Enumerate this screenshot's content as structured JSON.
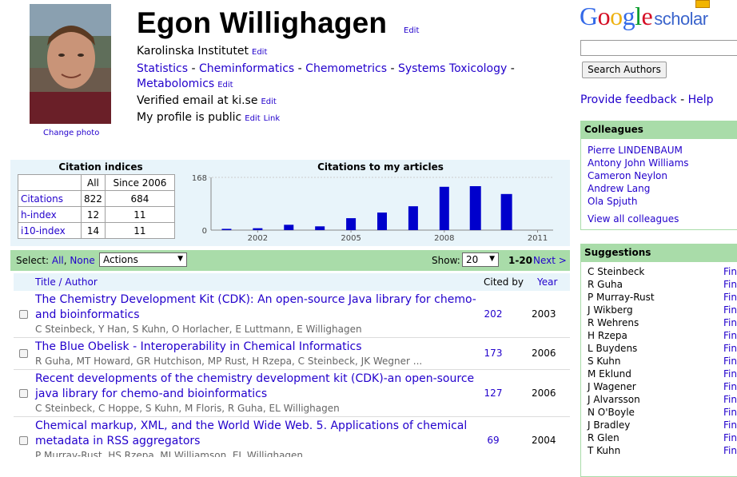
{
  "profile": {
    "name": "Egon Willighagen",
    "edit": "Edit",
    "affiliation": "Karolinska Institutet",
    "interests": [
      "Statistics",
      "Cheminformatics",
      "Chemometrics",
      "Systems Toxicology",
      "Metabolomics"
    ],
    "email": "Verified email at ki.se",
    "public": "My profile is public",
    "link": "Link",
    "change_photo": "Change photo"
  },
  "citation_indices": {
    "title": "Citation indices",
    "headers": [
      "",
      "All",
      "Since 2006"
    ],
    "rows": [
      {
        "label": "Citations",
        "all": "822",
        "since": "684"
      },
      {
        "label": "h-index",
        "all": "12",
        "since": "11"
      },
      {
        "label": "i10-index",
        "all": "14",
        "since": "11"
      }
    ]
  },
  "chart_data": {
    "type": "bar",
    "title": "Citations to my articles",
    "categories": [
      "2001",
      "2002",
      "2003",
      "2004",
      "2005",
      "2006",
      "2007",
      "2008",
      "2009",
      "2010",
      "2011"
    ],
    "values": [
      4,
      6,
      17,
      12,
      38,
      56,
      76,
      138,
      140,
      115,
      0
    ],
    "ylim": [
      0,
      168
    ],
    "ytick_labels": [
      "168",
      "0"
    ],
    "xtick_labels": [
      "2002",
      "2005",
      "2008",
      "2011"
    ],
    "color": "#0000cc"
  },
  "toolbar": {
    "select_label": "Select:",
    "all": "All",
    "none": "None",
    "actions": "Actions",
    "show_label": "Show:",
    "show_value": "20",
    "range": "1-20",
    "next": "Next >"
  },
  "list": {
    "headers": {
      "title": "Title / Author",
      "cited": "Cited by",
      "year": "Year"
    },
    "articles": [
      {
        "title": "The Chemistry Development Kit (CDK): An open-source Java library for chemo-and bioinformatics",
        "authors": "C Steinbeck, Y Han, S Kuhn, O Horlacher, E Luttmann, E Willighagen",
        "cited": "202",
        "year": "2003"
      },
      {
        "title": "The Blue Obelisk - Interoperability in Chemical Informatics",
        "authors": "R Guha, MT Howard, GR Hutchison, MP Rust, H Rzepa, C Steinbeck, JK Wegner ...",
        "cited": "173",
        "year": "2006"
      },
      {
        "title": "Recent developments of the chemistry development kit (CDK)-an open-source java library for chemo-and bioinformatics",
        "authors": "C Steinbeck, C Hoppe, S Kuhn, M Floris, R Guha, EL Willighagen",
        "cited": "127",
        "year": "2006"
      },
      {
        "title": "Chemical markup, XML, and the World Wide Web. 5. Applications of chemical metadata in RSS aggregators",
        "authors": "P Murray-Rust, HS Rzepa, MJ Williamson, EL Willighagen",
        "cited": "69",
        "year": "2004"
      }
    ]
  },
  "sidebar": {
    "logo": "Google",
    "logo_sub": "scholar",
    "search_button": "Search Authors",
    "feedback": "Provide feedback",
    "help": "Help",
    "colleagues_title": "Colleagues",
    "colleagues": [
      "Pierre LINDENBAUM",
      "Antony John Williams",
      "Cameron Neylon",
      "Andrew Lang",
      "Ola Spjuth"
    ],
    "view_all": "View all colleagues",
    "suggestions_title": "Suggestions",
    "suggestions": [
      "C Steinbeck",
      "R Guha",
      "P Murray-Rust",
      "J Wikberg",
      "R Wehrens",
      "H Rzepa",
      "L Buydens",
      "S Kuhn",
      "M Eklund",
      "J Wagener",
      "J Alvarsson",
      "N O'Boyle",
      "J Bradley",
      "R Glen",
      "T Kuhn"
    ],
    "find_label": "Fin"
  }
}
